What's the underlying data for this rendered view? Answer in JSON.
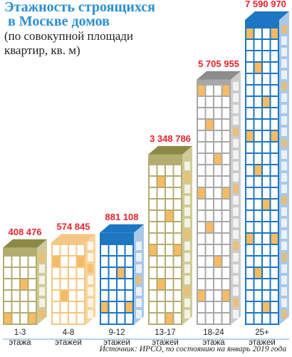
{
  "chart_data": {
    "type": "bar",
    "title": "Этажность строящихся\n в Москве домов",
    "subtitle": "(по совокупной площади\nквартир, кв. м)",
    "categories": [
      "1-3",
      "4-8",
      "9-12",
      "13-17",
      "18-24",
      "25+"
    ],
    "category_units": [
      "этажа",
      "этажей",
      "этажей",
      "этажей",
      "этажа",
      "этажей"
    ],
    "values": [
      408476,
      574845,
      881108,
      3348786,
      5705955,
      7590970
    ],
    "value_labels": [
      "408 476",
      "574 845",
      "881 108",
      "3 348 786",
      "5 705 955",
      "7 590 970"
    ],
    "ylim": [
      0,
      7590970
    ],
    "grid": false,
    "legend": "none"
  },
  "colors": {
    "title": "#2a8fd0",
    "value_label": "#e5232b",
    "window_lit": "#f6bb63",
    "buildings": [
      {
        "front": "#e9e6c4",
        "side": "#cfcb98",
        "roof": "#8a8a45",
        "frame": "#b3ad72",
        "window": "#ffffff"
      },
      {
        "front": "#fde8c4",
        "side": "#f6d49a",
        "roof": "#f3c783",
        "frame": "#f3c783",
        "window": "#ffffff"
      },
      {
        "front": "#c9ddf1",
        "side": "#a9c8e8",
        "roof": "#1d76c2",
        "frame": "#1d76c2",
        "window": "#ffffff"
      },
      {
        "front": "#e9e6c4",
        "side": "#cfcb98",
        "roof": "#8a8a45",
        "frame": "#b3ad72",
        "window": "#ffffff"
      },
      {
        "front": "#e3e3e3",
        "side": "#cccccc",
        "roof": "#8c8c8c",
        "frame": "#a8a8a8",
        "window": "#ffffff"
      },
      {
        "front": "#c9ddf1",
        "side": "#a9c8e8",
        "roof": "#1d76c2",
        "frame": "#1d76c2",
        "window": "#ffffff"
      }
    ]
  },
  "source": "Источник: ИРСО, по состоянию на январь 2019 года"
}
